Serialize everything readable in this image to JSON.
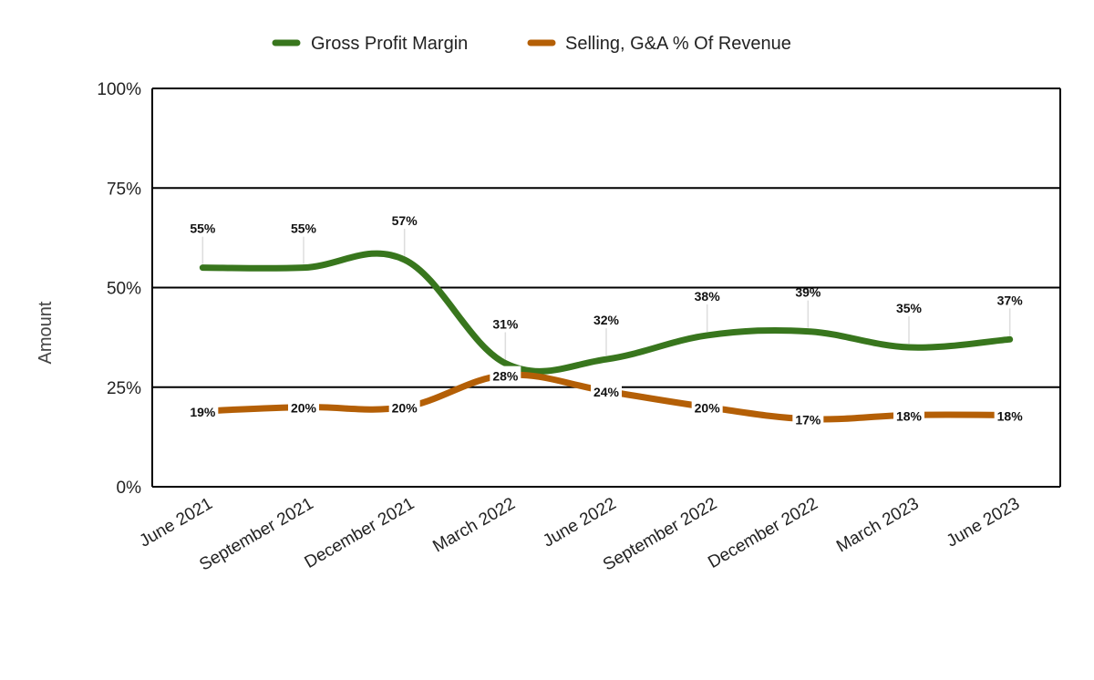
{
  "chart_data": {
    "type": "line",
    "title": "",
    "xlabel": "",
    "ylabel": "Amount",
    "ylim": [
      0,
      100
    ],
    "y_ticks": [
      "0%",
      "25%",
      "50%",
      "75%",
      "100%"
    ],
    "grid": true,
    "legend_position": "top",
    "categories": [
      "June 2021",
      "September 2021",
      "December 2021",
      "March 2022",
      "June 2022",
      "September 2022",
      "December 2022",
      "March 2023",
      "June 2023"
    ],
    "series": [
      {
        "name": "Gross Profit Margin",
        "color": "#38761d",
        "values": [
          55,
          55,
          57,
          31,
          32,
          38,
          39,
          35,
          37
        ],
        "labels": [
          "55%",
          "55%",
          "57%",
          "31%",
          "32%",
          "38%",
          "39%",
          "35%",
          "37%"
        ]
      },
      {
        "name": "Selling, G&A % Of Revenue",
        "color": "#b45f06",
        "values": [
          19,
          20,
          20,
          28,
          24,
          20,
          17,
          18,
          18
        ],
        "labels": [
          "19%",
          "20%",
          "20%",
          "28%",
          "24%",
          "20%",
          "17%",
          "18%",
          "18%"
        ]
      }
    ]
  }
}
